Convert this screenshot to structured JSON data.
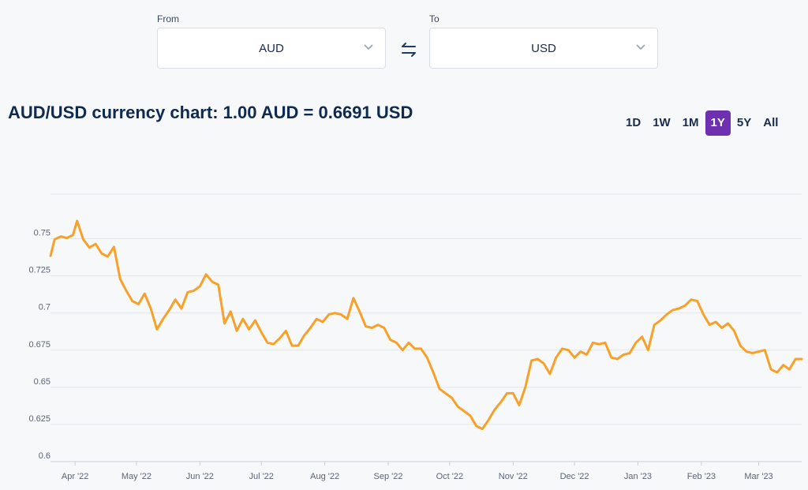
{
  "converter": {
    "from_label": "From",
    "from_value": "AUD",
    "to_label": "To",
    "to_value": "USD",
    "swap_icon": "swap-arrows-icon",
    "chevron_icon": "chevron-down-icon"
  },
  "title": "AUD/USD currency chart: 1.00 AUD = 0.6691 USD",
  "ranges": [
    {
      "label": "1D",
      "active": false
    },
    {
      "label": "1W",
      "active": false
    },
    {
      "label": "1M",
      "active": false
    },
    {
      "label": "1Y",
      "active": true
    },
    {
      "label": "5Y",
      "active": false
    },
    {
      "label": "All",
      "active": false
    }
  ],
  "colors": {
    "line": "#f7a12b",
    "accent": "#6f2fb1",
    "grid": "#e3e6eb"
  },
  "chart_data": {
    "type": "line",
    "title": "",
    "xlabel": "",
    "ylabel": "",
    "ylim": [
      0.6,
      0.78
    ],
    "yticks": [
      0.6,
      0.625,
      0.65,
      0.675,
      0.7,
      0.725,
      0.75
    ],
    "ytick_labels": [
      "0.6",
      "0.625",
      "0.65",
      "0.675",
      "0.7",
      "0.725",
      "0.75"
    ],
    "xticks": [
      {
        "date": "2022-04-01",
        "label": "Apr '22"
      },
      {
        "date": "2022-05-01",
        "label": "May '22"
      },
      {
        "date": "2022-06-01",
        "label": "Jun '22"
      },
      {
        "date": "2022-07-01",
        "label": "Jul '22"
      },
      {
        "date": "2022-08-01",
        "label": "Aug '22"
      },
      {
        "date": "2022-09-01",
        "label": "Sep '22"
      },
      {
        "date": "2022-10-01",
        "label": "Oct '22"
      },
      {
        "date": "2022-11-01",
        "label": "Nov '22"
      },
      {
        "date": "2022-12-01",
        "label": "Dec '22"
      },
      {
        "date": "2023-01-01",
        "label": "Jan '23"
      },
      {
        "date": "2023-02-01",
        "label": "Feb '23"
      },
      {
        "date": "2023-03-01",
        "label": "Mar '23"
      }
    ],
    "xlim": [
      "2022-03-20",
      "2023-03-22"
    ],
    "grid": true,
    "series": [
      {
        "name": "",
        "x": [
          "2022-03-20",
          "2022-03-22",
          "2022-03-25",
          "2022-03-28",
          "2022-03-31",
          "2022-04-02",
          "2022-04-05",
          "2022-04-08",
          "2022-04-11",
          "2022-04-14",
          "2022-04-17",
          "2022-04-20",
          "2022-04-23",
          "2022-04-26",
          "2022-04-29",
          "2022-05-02",
          "2022-05-05",
          "2022-05-08",
          "2022-05-11",
          "2022-05-14",
          "2022-05-17",
          "2022-05-20",
          "2022-05-23",
          "2022-05-26",
          "2022-05-29",
          "2022-06-01",
          "2022-06-04",
          "2022-06-07",
          "2022-06-10",
          "2022-06-13",
          "2022-06-16",
          "2022-06-19",
          "2022-06-22",
          "2022-06-25",
          "2022-06-28",
          "2022-07-01",
          "2022-07-04",
          "2022-07-07",
          "2022-07-10",
          "2022-07-13",
          "2022-07-16",
          "2022-07-19",
          "2022-07-22",
          "2022-07-25",
          "2022-07-28",
          "2022-07-31",
          "2022-08-03",
          "2022-08-06",
          "2022-08-09",
          "2022-08-12",
          "2022-08-15",
          "2022-08-18",
          "2022-08-21",
          "2022-08-24",
          "2022-08-27",
          "2022-08-30",
          "2022-09-02",
          "2022-09-05",
          "2022-09-08",
          "2022-09-11",
          "2022-09-14",
          "2022-09-17",
          "2022-09-20",
          "2022-09-23",
          "2022-09-26",
          "2022-09-29",
          "2022-10-02",
          "2022-10-05",
          "2022-10-08",
          "2022-10-11",
          "2022-10-14",
          "2022-10-17",
          "2022-10-20",
          "2022-10-23",
          "2022-10-26",
          "2022-10-29",
          "2022-11-01",
          "2022-11-04",
          "2022-11-07",
          "2022-11-10",
          "2022-11-13",
          "2022-11-16",
          "2022-11-19",
          "2022-11-22",
          "2022-11-25",
          "2022-11-28",
          "2022-12-01",
          "2022-12-04",
          "2022-12-07",
          "2022-12-10",
          "2022-12-13",
          "2022-12-16",
          "2022-12-19",
          "2022-12-22",
          "2022-12-25",
          "2022-12-28",
          "2022-12-31",
          "2023-01-03",
          "2023-01-06",
          "2023-01-09",
          "2023-01-12",
          "2023-01-15",
          "2023-01-18",
          "2023-01-21",
          "2023-01-24",
          "2023-01-27",
          "2023-01-30",
          "2023-02-02",
          "2023-02-05",
          "2023-02-08",
          "2023-02-11",
          "2023-02-14",
          "2023-02-17",
          "2023-02-20",
          "2023-02-23",
          "2023-02-26",
          "2023-03-01",
          "2023-03-04",
          "2023-03-07",
          "2023-03-10",
          "2023-03-13",
          "2023-03-16",
          "2023-03-19",
          "2023-03-22"
        ],
        "values": [
          0.7385,
          0.7495,
          0.7515,
          0.7505,
          0.7525,
          0.762,
          0.7495,
          0.744,
          0.7465,
          0.74,
          0.738,
          0.7445,
          0.723,
          0.715,
          0.708,
          0.706,
          0.713,
          0.703,
          0.689,
          0.696,
          0.702,
          0.709,
          0.703,
          0.714,
          0.715,
          0.718,
          0.726,
          0.721,
          0.719,
          0.693,
          0.701,
          0.688,
          0.696,
          0.689,
          0.695,
          0.687,
          0.68,
          0.679,
          0.683,
          0.688,
          0.678,
          0.678,
          0.685,
          0.69,
          0.696,
          0.694,
          0.699,
          0.7,
          0.699,
          0.696,
          0.71,
          0.701,
          0.691,
          0.69,
          0.692,
          0.69,
          0.682,
          0.68,
          0.675,
          0.68,
          0.676,
          0.676,
          0.67,
          0.66,
          0.649,
          0.646,
          0.643,
          0.637,
          0.634,
          0.631,
          0.624,
          0.622,
          0.628,
          0.635,
          0.64,
          0.646,
          0.646,
          0.638,
          0.65,
          0.668,
          0.669,
          0.666,
          0.659,
          0.67,
          0.676,
          0.675,
          0.67,
          0.674,
          0.672,
          0.68,
          0.679,
          0.68,
          0.67,
          0.669,
          0.672,
          0.673,
          0.68,
          0.684,
          0.675,
          0.692,
          0.695,
          0.699,
          0.702,
          0.703,
          0.705,
          0.709,
          0.708,
          0.699,
          0.692,
          0.694,
          0.69,
          0.693,
          0.688,
          0.678,
          0.674,
          0.673,
          0.674,
          0.675,
          0.662,
          0.66,
          0.665,
          0.662,
          0.669,
          0.669
        ]
      }
    ]
  }
}
